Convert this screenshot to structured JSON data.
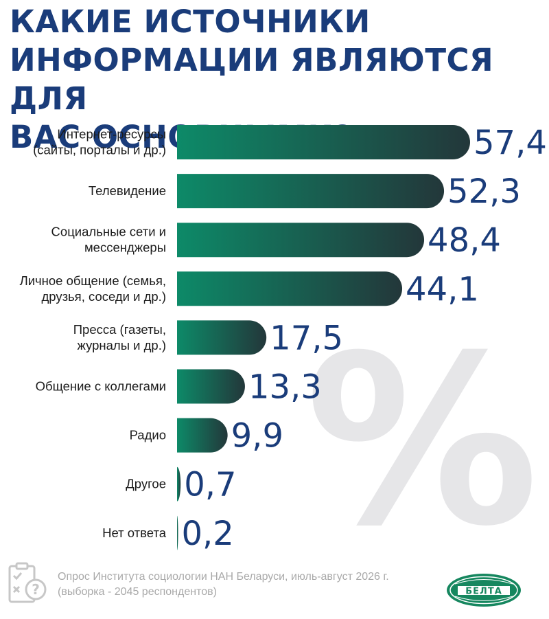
{
  "title_lines": [
    "КАКИЕ ИСТОЧНИКИ",
    "ИНФОРМАЦИИ ЯВЛЯЮТСЯ ДЛЯ",
    "ВАС ОСНОВНЫМИ?"
  ],
  "footer": {
    "line1": "Опрос Института социологии НАН Беларуси, июль-август 2026 г.",
    "line2": "(выборка - 2045 респондентов)"
  },
  "logo": {
    "text": "БЕЛТА"
  },
  "watermark_symbol": "%",
  "colors": {
    "title": "#1a3c7a",
    "value": "#1a3c7a",
    "bar_start": "#0d8a68",
    "bar_end": "#23373a",
    "label": "#1b1b1b",
    "logo": "#16875f"
  },
  "chart_data": {
    "type": "bar",
    "orientation": "horizontal",
    "unit": "%",
    "categories": [
      [
        "Интернет-ресурсы",
        "(сайты, порталы и др.)"
      ],
      [
        "Телевидение"
      ],
      [
        "Социальные сети и",
        "мессенджеры"
      ],
      [
        "Личное общение (семья,",
        "друзья, соседи и др.)"
      ],
      [
        "Пресса (газеты,",
        "журналы и др.)"
      ],
      [
        "Общение с коллегами"
      ],
      [
        "Радио"
      ],
      [
        "Другое"
      ],
      [
        "Нет ответа"
      ]
    ],
    "values": [
      57.4,
      52.3,
      48.4,
      44.1,
      17.5,
      13.3,
      9.9,
      0.7,
      0.2
    ],
    "value_labels": [
      "57,4",
      "52,3",
      "48,4",
      "44,1",
      "17,5",
      "13,3",
      "9,9",
      "0,7",
      "0,2"
    ],
    "xlim": [
      0,
      57.4
    ],
    "grid": false,
    "legend": "none"
  }
}
